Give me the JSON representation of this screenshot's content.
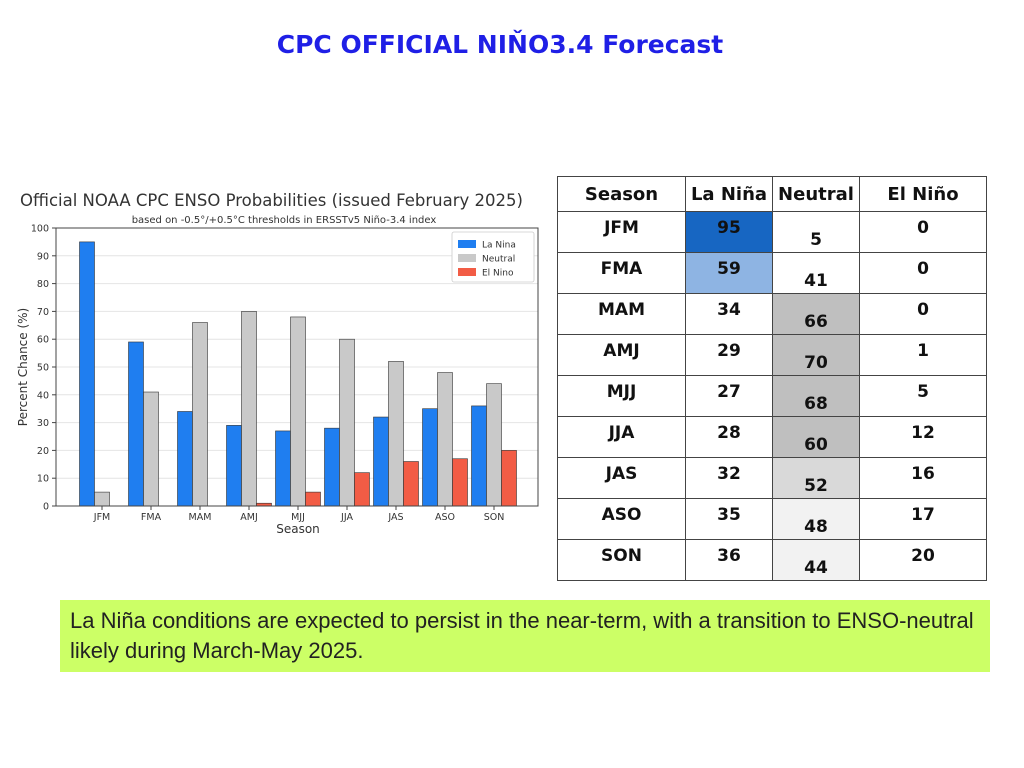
{
  "slide": {
    "title": "CPC OFFICIAL NIŇO3.4 Forecast",
    "note": "La Niña conditions are expected to persist in the near-term, with a transition to ENSO-neutral likely during March-May 2025."
  },
  "colors": {
    "title": "#1f1fe6",
    "la_nina": "#1f7ef0",
    "neutral": "#c9c9c9",
    "el_nino": "#f25c45",
    "note_bg": "#ccff66"
  },
  "chart_data": {
    "type": "bar",
    "title": "Official NOAA CPC ENSO Probabilities (issued February 2025)",
    "subtitle": "based on -0.5°/+0.5°C thresholds in ERSSTv5 Niño-3.4 index",
    "xlabel": "Season",
    "ylabel": "Percent Chance (%)",
    "ylim": [
      0,
      100
    ],
    "yticks": [
      "0",
      "10",
      "20",
      "30",
      "40",
      "50",
      "60",
      "70",
      "80",
      "90",
      "100"
    ],
    "grid": true,
    "legend_position": "top-right",
    "categories": [
      "JFM",
      "FMA",
      "MAM",
      "AMJ",
      "MJJ",
      "JJA",
      "JAS",
      "ASO",
      "SON"
    ],
    "series": [
      {
        "name": "La Nina",
        "color": "#1f7ef0",
        "values": [
          95,
          59,
          34,
          29,
          27,
          28,
          32,
          35,
          36
        ]
      },
      {
        "name": "Neutral",
        "color": "#c9c9c9",
        "values": [
          5,
          41,
          66,
          70,
          68,
          60,
          52,
          48,
          44
        ]
      },
      {
        "name": "El Nino",
        "color": "#f25c45",
        "values": [
          0,
          0,
          0,
          1,
          5,
          12,
          16,
          17,
          20
        ]
      }
    ]
  },
  "table": {
    "headers": [
      "Season",
      "La Niña",
      "Neutral",
      "El Niño"
    ],
    "rows": [
      {
        "season": "JFM",
        "la_nina": "95",
        "neutral": "5",
        "el_nino": "0",
        "la_bg": "#1766c2",
        "neu_bg": "#ffffff"
      },
      {
        "season": "FMA",
        "la_nina": "59",
        "neutral": "41",
        "el_nino": "0",
        "la_bg": "#8eb4e3",
        "neu_bg": "#ffffff"
      },
      {
        "season": "MAM",
        "la_nina": "34",
        "neutral": "66",
        "el_nino": "0",
        "la_bg": "#ffffff",
        "neu_bg": "#bfbfbf"
      },
      {
        "season": "AMJ",
        "la_nina": "29",
        "neutral": "70",
        "el_nino": "1",
        "la_bg": "#ffffff",
        "neu_bg": "#bfbfbf"
      },
      {
        "season": "MJJ",
        "la_nina": "27",
        "neutral": "68",
        "el_nino": "5",
        "la_bg": "#ffffff",
        "neu_bg": "#bfbfbf"
      },
      {
        "season": "JJA",
        "la_nina": "28",
        "neutral": "60",
        "el_nino": "12",
        "la_bg": "#ffffff",
        "neu_bg": "#bfbfbf"
      },
      {
        "season": "JAS",
        "la_nina": "32",
        "neutral": "52",
        "el_nino": "16",
        "la_bg": "#ffffff",
        "neu_bg": "#d9d9d9"
      },
      {
        "season": "ASO",
        "la_nina": "35",
        "neutral": "48",
        "el_nino": "17",
        "la_bg": "#ffffff",
        "neu_bg": "#f2f2f2"
      },
      {
        "season": "SON",
        "la_nina": "36",
        "neutral": "44",
        "el_nino": "20",
        "la_bg": "#ffffff",
        "neu_bg": "#f2f2f2"
      }
    ]
  }
}
